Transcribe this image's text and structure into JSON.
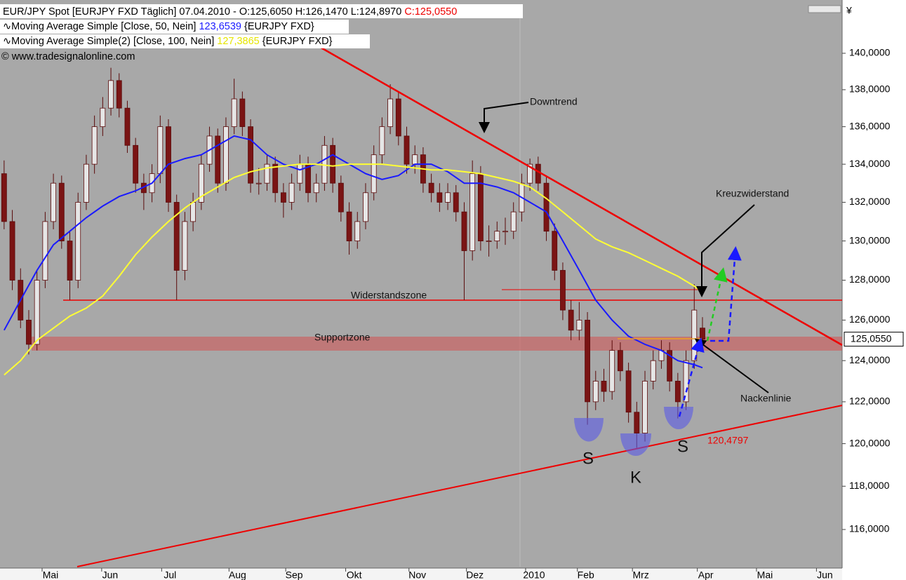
{
  "chart_data": {
    "type": "candlestick",
    "title": "EUR/JPY Spot [EURJPY FXD  Täglich] 07.04.2010 - O:125,6050 H:126,1470 L:124,8970",
    "close_label": "C:125,0550",
    "source": "© www.tradesignalonline.com",
    "currency": "¥",
    "last_price_label": "125,0550",
    "up_color": "#e6e6e6",
    "down_color": "#7a1414",
    "log_scale": true,
    "ylim": [
      114.31,
      142.66
    ],
    "yticks": [
      {
        "value": 116,
        "label": "116,0000"
      },
      {
        "value": 118,
        "label": "118,0000"
      },
      {
        "value": 120,
        "label": "120,0000"
      },
      {
        "value": 122,
        "label": "122,0000"
      },
      {
        "value": 124,
        "label": "124,0000"
      },
      {
        "value": 126,
        "label": "126,0000"
      },
      {
        "value": 128,
        "label": "128,0000"
      },
      {
        "value": 130,
        "label": "130,0000"
      },
      {
        "value": 132,
        "label": "132,0000"
      },
      {
        "value": 134,
        "label": "134,0000"
      },
      {
        "value": 136,
        "label": "136,0000"
      },
      {
        "value": 138,
        "label": "138,0000"
      },
      {
        "value": 140,
        "label": "140,0000"
      }
    ],
    "xlim": [
      -0.5,
      102
    ],
    "xticks": [
      {
        "value": 5.65,
        "label": "Mai"
      },
      {
        "value": 12.9,
        "label": "Jun"
      },
      {
        "value": 20.2,
        "label": "Jul"
      },
      {
        "value": 28.4,
        "label": "Aug"
      },
      {
        "value": 35.3,
        "label": "Sep"
      },
      {
        "value": 42.6,
        "label": "Okt"
      },
      {
        "value": 50.3,
        "label": "Nov"
      },
      {
        "value": 57.3,
        "label": "Dez"
      },
      {
        "value": 64.5,
        "label": "2010"
      },
      {
        "value": 70.8,
        "label": "Feb"
      },
      {
        "value": 77.5,
        "label": "Mrz"
      },
      {
        "value": 85.4,
        "label": "Apr"
      },
      {
        "value": 92.6,
        "label": "Mai"
      },
      {
        "value": 99.9,
        "label": "Jun"
      }
    ],
    "ohlc": [
      [
        133.5,
        134.2,
        130.6,
        131
      ],
      [
        131,
        131.6,
        127.5,
        128
      ],
      [
        128,
        128.6,
        125.6,
        126
      ],
      [
        126,
        126.5,
        124.3,
        124.8
      ],
      [
        124.8,
        128.5,
        124.5,
        128
      ],
      [
        128,
        131.5,
        127.6,
        131
      ],
      [
        131,
        133.5,
        130.6,
        133
      ],
      [
        133,
        133.4,
        129.6,
        130
      ],
      [
        130,
        130.5,
        127,
        128
      ],
      [
        128,
        132.5,
        127.6,
        132
      ],
      [
        132,
        134.5,
        131.6,
        134
      ],
      [
        134,
        136.6,
        133.5,
        136
      ],
      [
        136,
        137.6,
        135.5,
        137
      ],
      [
        137,
        139.2,
        136.6,
        138.5
      ],
      [
        138.5,
        138.9,
        136.5,
        137
      ],
      [
        137,
        137.4,
        134.6,
        135
      ],
      [
        135,
        135.4,
        132.5,
        133
      ],
      [
        133,
        133.5,
        131.6,
        132.5
      ],
      [
        132.5,
        134,
        132,
        133.5
      ],
      [
        133.5,
        136.6,
        133,
        136
      ],
      [
        136,
        136.4,
        131.5,
        132
      ],
      [
        132,
        132.4,
        127,
        128.5
      ],
      [
        128.5,
        131.5,
        128,
        131
      ],
      [
        131,
        132.5,
        130.5,
        132
      ],
      [
        132,
        134.5,
        131.6,
        134
      ],
      [
        134,
        136,
        133.6,
        135.5
      ],
      [
        135.5,
        135.9,
        132.5,
        133
      ],
      [
        133,
        136.5,
        132.6,
        136
      ],
      [
        136,
        138.6,
        135.6,
        137.5
      ],
      [
        137.5,
        137.9,
        135.5,
        136
      ],
      [
        136,
        136.4,
        132.5,
        133
      ],
      [
        133,
        133.8,
        132.4,
        133
      ],
      [
        133,
        134.5,
        132.6,
        134
      ],
      [
        134,
        134.4,
        132,
        132.5
      ],
      [
        132.5,
        133,
        131.2,
        132
      ],
      [
        132,
        133.5,
        131.6,
        133
      ],
      [
        133,
        134.5,
        132.6,
        134
      ],
      [
        134,
        134.4,
        132,
        132.5
      ],
      [
        132.5,
        133.5,
        132,
        133
      ],
      [
        133,
        135.5,
        132.6,
        135
      ],
      [
        135,
        135.4,
        132.5,
        133
      ],
      [
        133,
        133.4,
        131,
        131.5
      ],
      [
        131.5,
        132,
        129.3,
        130
      ],
      [
        130,
        131.5,
        129.6,
        131
      ],
      [
        131,
        133,
        130.6,
        132.5
      ],
      [
        132.5,
        135,
        132.1,
        134.5
      ],
      [
        134.5,
        136.5,
        134,
        136
      ],
      [
        136,
        138.3,
        135.6,
        137.5
      ],
      [
        137.5,
        137.9,
        135,
        135.5
      ],
      [
        135.5,
        136,
        133.5,
        134
      ],
      [
        134,
        135,
        133.5,
        134.5
      ],
      [
        134.5,
        134.9,
        132.5,
        133
      ],
      [
        133,
        133.5,
        132,
        132.5
      ],
      [
        132.5,
        133,
        131.5,
        132
      ],
      [
        132,
        133,
        131.6,
        132.5
      ],
      [
        132.5,
        132.9,
        131,
        131.5
      ],
      [
        131.5,
        132,
        127,
        129.5
      ],
      [
        129.5,
        134.2,
        129,
        133.5
      ],
      [
        133.5,
        133.9,
        129.5,
        130
      ],
      [
        130,
        130.8,
        129.2,
        130
      ],
      [
        130,
        131,
        129.6,
        130.5
      ],
      [
        130.5,
        131.2,
        129.8,
        130.5
      ],
      [
        130.5,
        132,
        130.1,
        131.5
      ],
      [
        131.5,
        133.5,
        131,
        133
      ],
      [
        133,
        134.3,
        132.6,
        134
      ],
      [
        134,
        134.4,
        132.6,
        133
      ],
      [
        133,
        133.4,
        130,
        130.5
      ],
      [
        130.5,
        130.9,
        128,
        128.5
      ],
      [
        128.5,
        128.9,
        126,
        126.5
      ],
      [
        126.5,
        127,
        125,
        125.5
      ],
      [
        125.5,
        126.9,
        125,
        126
      ],
      [
        126,
        126.4,
        120.9,
        122
      ],
      [
        122,
        123.5,
        121.6,
        123
      ],
      [
        123,
        123.6,
        122,
        122.5
      ],
      [
        122.5,
        125,
        122.1,
        124.5
      ],
      [
        124.5,
        124.9,
        123,
        123.5
      ],
      [
        123.5,
        123.9,
        121,
        121.5
      ],
      [
        121.5,
        122,
        119.8,
        120.5
      ],
      [
        120.5,
        123.5,
        120.1,
        123
      ],
      [
        123,
        124.5,
        122.6,
        124
      ],
      [
        124,
        125,
        123.6,
        124.5
      ],
      [
        124.5,
        124.9,
        122.5,
        123
      ],
      [
        123,
        123.4,
        121.2,
        122
      ],
      [
        122,
        124.5,
        121.6,
        124
      ],
      [
        124,
        127.8,
        123.6,
        126.5
      ],
      [
        125.605,
        126.147,
        124.897,
        125.055
      ]
    ],
    "series": [
      {
        "name": "Moving Average Simple [Close, 50, Nein]",
        "last_label": "123,6539",
        "source": "{EURJPY FXD}",
        "color": "#1a1aff",
        "x": [
          0,
          2,
          4,
          6,
          8,
          10,
          12,
          14,
          16,
          18,
          20,
          22,
          24,
          26,
          28,
          30,
          32,
          34,
          36,
          38,
          40,
          42,
          44,
          46,
          48,
          50,
          52,
          54,
          56,
          58,
          60,
          62,
          64,
          66,
          68,
          70,
          72,
          74,
          76,
          78,
          80,
          82,
          84,
          85
        ],
        "values": [
          125.5,
          127,
          128.5,
          129.8,
          130.5,
          131.2,
          131.8,
          132.3,
          132.6,
          133,
          134,
          134.3,
          134.5,
          135,
          135.5,
          135.3,
          134.5,
          134,
          133.7,
          134,
          134.5,
          134,
          133.5,
          133.2,
          133.4,
          134,
          134,
          133.6,
          133,
          133,
          132.8,
          132.5,
          132,
          131.5,
          130,
          128.5,
          127,
          126,
          125.2,
          124.8,
          124.5,
          124,
          123.8,
          123.6539
        ]
      },
      {
        "name": "Moving Average Simple(2) [Close, 100, Nein]",
        "last_label": "127,3865",
        "source": "{EURJPY FXD}",
        "color": "#ffff33",
        "x": [
          0,
          2,
          4,
          6,
          8,
          10,
          12,
          14,
          16,
          18,
          20,
          22,
          24,
          26,
          28,
          30,
          32,
          34,
          36,
          38,
          40,
          42,
          44,
          46,
          48,
          50,
          52,
          54,
          56,
          58,
          60,
          62,
          64,
          66,
          68,
          70,
          72,
          74,
          76,
          78,
          80,
          82,
          84,
          85
        ],
        "values": [
          123.3,
          124,
          125,
          125.6,
          126.2,
          126.6,
          127.2,
          128.2,
          129.3,
          130.2,
          131,
          131.7,
          132.3,
          132.8,
          133.3,
          133.6,
          133.8,
          133.9,
          134,
          134,
          133.9,
          134,
          134,
          134,
          133.9,
          133.8,
          133.7,
          133.7,
          133.6,
          133.5,
          133.3,
          133.1,
          132.8,
          132.2,
          131.5,
          130.8,
          130.1,
          129.7,
          129.4,
          129,
          128.6,
          128.2,
          127.7,
          127.3865
        ]
      }
    ],
    "annotations": [
      "Downtrend",
      "Kreuzwiderstand",
      "Widerstandszone",
      "Supportzone",
      "Nackenlinie",
      "S",
      "K",
      "S",
      "120,4797"
    ]
  }
}
